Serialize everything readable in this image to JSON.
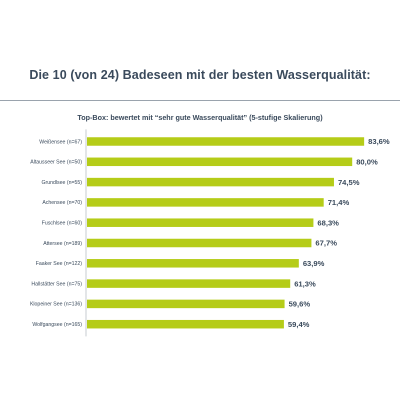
{
  "header": {
    "title": "Die 10 (von 24) Badeseen mit der besten Wasserqualität:",
    "subtitle": "Top-Box: bewertet mit “sehr gute Wasserqualität” (5-stufige Skalierung)"
  },
  "chart_data": {
    "type": "bar",
    "orientation": "horizontal",
    "title": "Die 10 (von 24) Badeseen mit der besten Wasserqualität:",
    "subtitle": "Top-Box: bewertet mit “sehr gute Wasserqualität” (5-stufige Skalierung)",
    "categories": [
      "Weißensee (n=67)",
      "Altausseer See (n=50)",
      "Grundlsee (n=55)",
      "Achensee (n=70)",
      "Fuschlsee (n=60)",
      "Attersee (n=189)",
      "Faaker See (n=122)",
      "Hallstätter See (n=75)",
      "Klopeiner See (n=136)",
      "Wolfgangsee (n=165)"
    ],
    "values": [
      83.6,
      80.0,
      74.5,
      71.4,
      68.3,
      67.7,
      63.9,
      61.3,
      59.6,
      59.4
    ],
    "value_labels": [
      "83,6%",
      "80,0%",
      "74,5%",
      "71,4%",
      "68,3%",
      "67,7%",
      "63,9%",
      "61,3%",
      "59,6%",
      "59,4%"
    ],
    "xlim": [
      0,
      100
    ],
    "xlabel": "",
    "ylabel": "",
    "grid": false,
    "legend": "none",
    "bar_color": "#b5cc18",
    "text_color": "#3a4a5c"
  }
}
